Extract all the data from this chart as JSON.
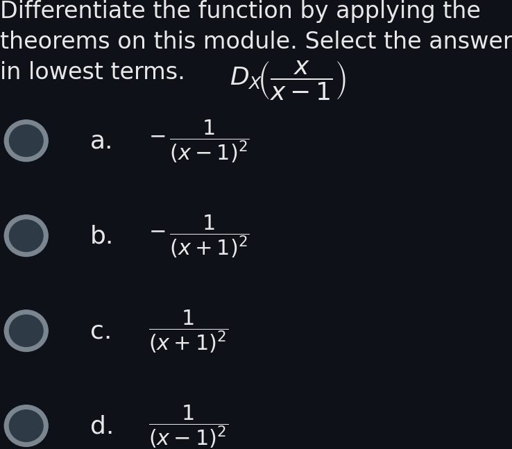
{
  "background_color": "#0e1117",
  "text_color": "#e8e8e8",
  "title_line1": "Differentiate the function by applying the",
  "title_line2": "theorems on this module. Select the answer",
  "title_line3": "in lowest terms. ",
  "title_math": "$D_X\\!\\left(\\dfrac{x}{x-1}\\right)$",
  "options": [
    {
      "label": "a.",
      "expr": "$-\\,\\dfrac{1}{(x-1)^2}$"
    },
    {
      "label": "b.",
      "expr": "$-\\,\\dfrac{1}{(x+1)^2}$"
    },
    {
      "label": "c.",
      "expr": "$\\dfrac{1}{(x+1)^2}$"
    },
    {
      "label": "d.",
      "expr": "$\\dfrac{1}{(x-1)^2}$"
    }
  ],
  "circle_outer_color": "#7a8590",
  "circle_inner_color": "#2e3a45",
  "title_fontsize": 24,
  "label_fontsize": 26,
  "math_fontsize": 22,
  "title_math_fontsize": 26
}
